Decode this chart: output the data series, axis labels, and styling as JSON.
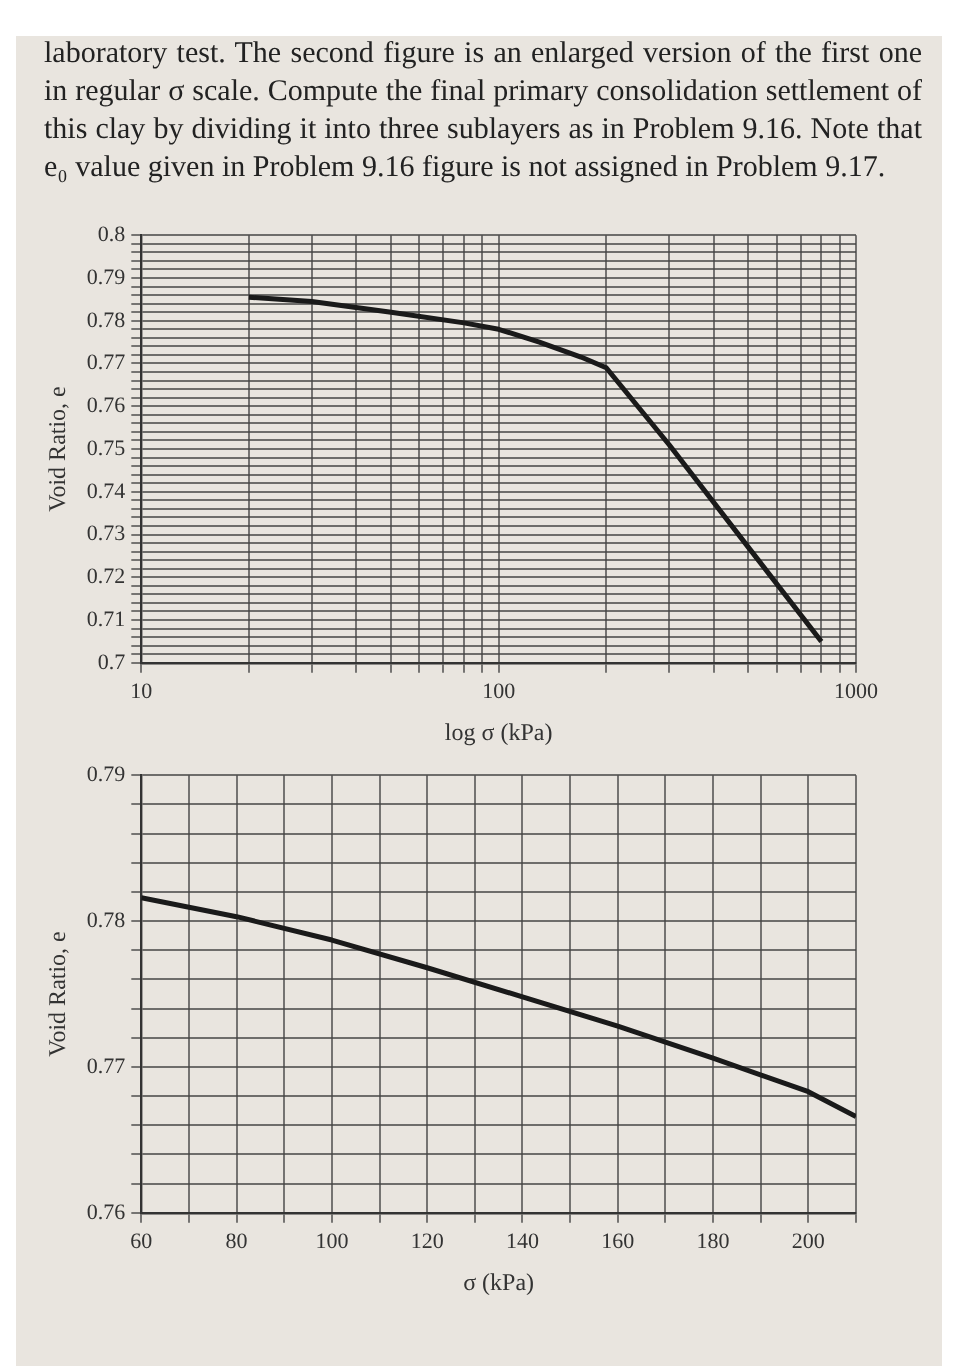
{
  "chart_data": [
    {
      "type": "line",
      "annotations": [
        "laboratory test. The second figure is an enlarged version of the first one in regular σ scale. Compute the final primary consolidation settlement of this clay by dividing it into three sublayers as in Problem 9.16. Note that e₀ value given in Problem 9.16 figure is not assigned in Problem 9.17."
      ],
      "xlabel": "log σ (kPa)",
      "ylabel": "Void Ratio, e",
      "log": "x",
      "grid": true,
      "marker": "none",
      "line_style": "solid",
      "series": [
        {
          "color": "#1a1a1a",
          "x": [
            20,
            30,
            50,
            80,
            100,
            130,
            170,
            200,
            300,
            500,
            800
          ],
          "values": [
            0.7855,
            0.7845,
            0.782,
            0.7795,
            0.778,
            0.775,
            0.7715,
            0.769,
            0.751,
            0.727,
            0.705
          ]
        }
      ],
      "xlim": [
        10,
        1000
      ],
      "ylim": [
        0.7,
        0.8
      ],
      "xticks": [
        10,
        {
          "value": 20,
          "label": null
        },
        {
          "value": 30,
          "label": null
        },
        {
          "value": 40,
          "label": null
        },
        {
          "value": 50,
          "label": null
        },
        {
          "value": 60,
          "label": null
        },
        {
          "value": 70,
          "label": null
        },
        {
          "value": 80,
          "label": null
        },
        {
          "value": 90,
          "label": null
        },
        100,
        {
          "value": 200,
          "label": null
        },
        {
          "value": 300,
          "label": null
        },
        {
          "value": 400,
          "label": null
        },
        {
          "value": 500,
          "label": null
        },
        {
          "value": 600,
          "label": null
        },
        {
          "value": 700,
          "label": null
        },
        {
          "value": 800,
          "label": null
        },
        {
          "value": 900,
          "label": null
        },
        1000
      ],
      "yticks": [
        0.7,
        {
          "value": 0.702,
          "label": null
        },
        {
          "value": 0.704,
          "label": null
        },
        {
          "value": 0.706,
          "label": null
        },
        {
          "value": 0.708,
          "label": null
        },
        0.71,
        {
          "value": 0.712,
          "label": null
        },
        {
          "value": 0.714,
          "label": null
        },
        {
          "value": 0.716,
          "label": null
        },
        {
          "value": 0.718,
          "label": null
        },
        0.72,
        {
          "value": 0.722,
          "label": null
        },
        {
          "value": 0.724,
          "label": null
        },
        {
          "value": 0.726,
          "label": null
        },
        {
          "value": 0.728,
          "label": null
        },
        0.73,
        {
          "value": 0.732,
          "label": null
        },
        {
          "value": 0.734,
          "label": null
        },
        {
          "value": 0.736,
          "label": null
        },
        {
          "value": 0.738,
          "label": null
        },
        0.74,
        {
          "value": 0.742,
          "label": null
        },
        {
          "value": 0.744,
          "label": null
        },
        {
          "value": 0.746,
          "label": null
        },
        {
          "value": 0.748,
          "label": null
        },
        0.75,
        {
          "value": 0.752,
          "label": null
        },
        {
          "value": 0.754,
          "label": null
        },
        {
          "value": 0.756,
          "label": null
        },
        {
          "value": 0.758,
          "label": null
        },
        0.76,
        {
          "value": 0.762,
          "label": null
        },
        {
          "value": 0.764,
          "label": null
        },
        {
          "value": 0.766,
          "label": null
        },
        {
          "value": 0.768,
          "label": null
        },
        0.77,
        {
          "value": 0.772,
          "label": null
        },
        {
          "value": 0.774,
          "label": null
        },
        {
          "value": 0.776,
          "label": null
        },
        {
          "value": 0.778,
          "label": null
        },
        0.78,
        {
          "value": 0.782,
          "label": null
        },
        {
          "value": 0.784,
          "label": null
        },
        {
          "value": 0.786,
          "label": null
        },
        {
          "value": 0.788,
          "label": null
        },
        0.79,
        {
          "value": 0.792,
          "label": null
        },
        {
          "value": 0.794,
          "label": null
        },
        {
          "value": 0.796,
          "label": null
        },
        {
          "value": 0.798,
          "label": null
        },
        0.8
      ]
    },
    {
      "type": "line",
      "xlabel": "σ (kPa)",
      "ylabel": "Void Ratio, e",
      "grid": true,
      "marker": "none",
      "line_style": "solid",
      "series": [
        {
          "color": "#1a1a1a",
          "x": [
            60,
            80,
            100,
            120,
            140,
            160,
            180,
            200,
            210
          ],
          "values": [
            0.7816,
            0.7803,
            0.7787,
            0.7768,
            0.7748,
            0.7728,
            0.7706,
            0.7683,
            0.7666
          ]
        }
      ],
      "xlim": [
        60,
        210
      ],
      "ylim": [
        0.76,
        0.79
      ],
      "xticks": [
        60,
        {
          "value": 70,
          "label": null
        },
        80,
        {
          "value": 90,
          "label": null
        },
        100,
        {
          "value": 110,
          "label": null
        },
        120,
        {
          "value": 130,
          "label": null
        },
        140,
        {
          "value": 150,
          "label": null
        },
        160,
        {
          "value": 170,
          "label": null
        },
        180,
        {
          "value": 190,
          "label": null
        },
        200,
        {
          "value": 210,
          "label": null
        }
      ],
      "yticks": [
        0.76,
        {
          "value": 0.762,
          "label": null
        },
        {
          "value": 0.764,
          "label": null
        },
        {
          "value": 0.766,
          "label": null
        },
        {
          "value": 0.768,
          "label": null
        },
        0.77,
        {
          "value": 0.772,
          "label": null
        },
        {
          "value": 0.774,
          "label": null
        },
        {
          "value": 0.776,
          "label": null
        },
        {
          "value": 0.778,
          "label": null
        },
        0.78,
        {
          "value": 0.782,
          "label": null
        },
        {
          "value": 0.784,
          "label": null
        },
        {
          "value": 0.786,
          "label": null
        },
        {
          "value": 0.788,
          "label": null
        },
        0.79
      ]
    }
  ]
}
